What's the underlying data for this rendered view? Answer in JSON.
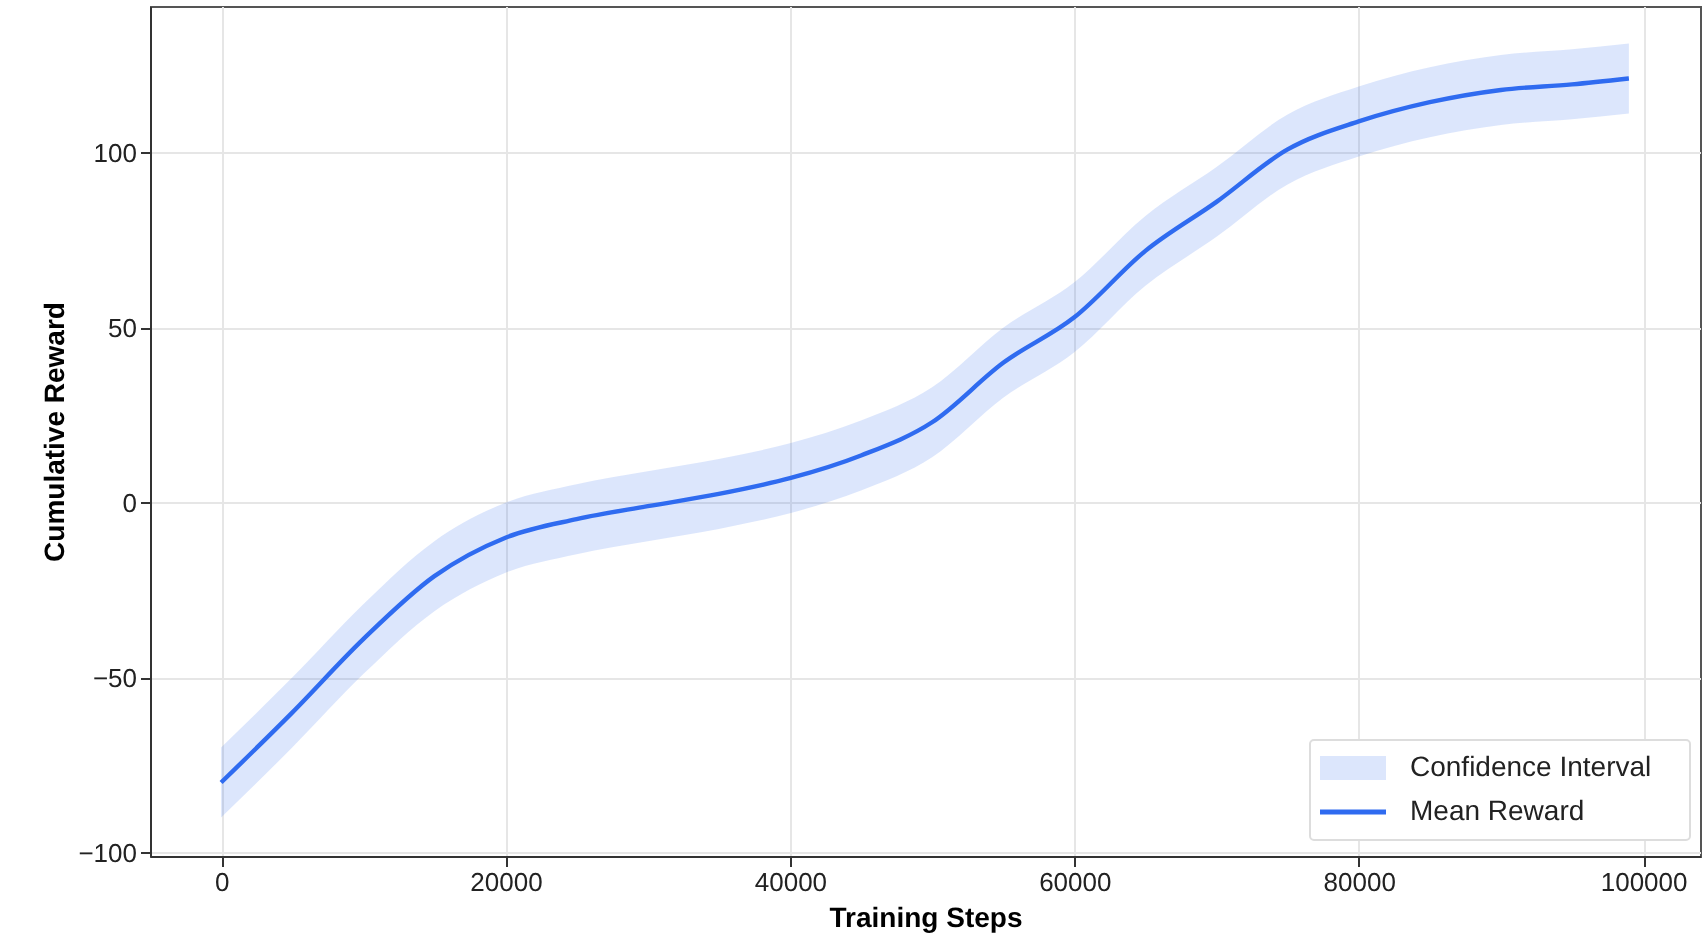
{
  "chart_data": {
    "type": "line",
    "xlabel": "Training Steps",
    "ylabel": "Cumulative Reward",
    "xlim": [
      -5000,
      104000
    ],
    "xticks": [
      0,
      20000,
      40000,
      60000,
      80000,
      100000
    ],
    "ylim": [
      -101,
      142
    ],
    "yticks": [
      -100,
      -50,
      0,
      50,
      100
    ],
    "grid": true,
    "legend": "bottom right",
    "line_style": "solid",
    "annotations": [
      "Confidence Interval"
    ],
    "series": [
      {
        "name": "Mean Reward",
        "color": "#2f6bf0",
        "x": [
          0,
          5000,
          10000,
          15000,
          20000,
          25000,
          30000,
          35000,
          40000,
          45000,
          50000,
          55000,
          60000,
          65000,
          70000,
          75000,
          80000,
          85000,
          90000,
          95000,
          99000
        ],
        "values": [
          -80,
          -60,
          -39,
          -21,
          -10,
          -4.7,
          -1,
          2.5,
          7,
          13.5,
          23,
          40,
          53,
          72,
          86,
          101,
          109,
          114.5,
          118,
          119.6,
          121.3
        ],
        "lower": [
          -90,
          -70,
          -49,
          -31,
          -20,
          -14.7,
          -11,
          -7.5,
          -3,
          3.5,
          13,
          30,
          43,
          62,
          76,
          91,
          99,
          104.5,
          108,
          109.6,
          111.3
        ],
        "upper": [
          -70,
          -50,
          -29,
          -11,
          0,
          5.3,
          9,
          12.5,
          17,
          23.5,
          33,
          50,
          63,
          82,
          96,
          111,
          119,
          124.5,
          128,
          129.6,
          131.3
        ]
      }
    ]
  }
}
